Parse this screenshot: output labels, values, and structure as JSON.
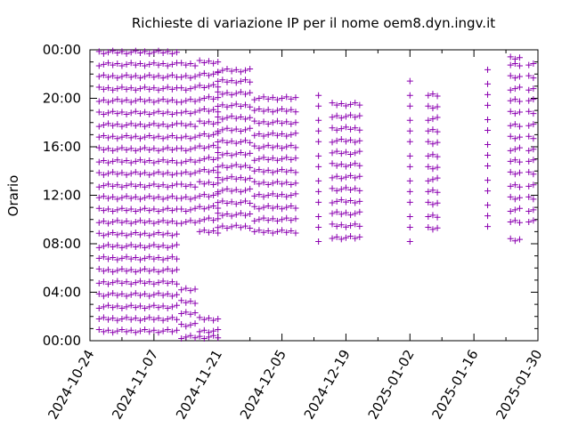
{
  "chart_data": {
    "type": "scatter",
    "title": "Richieste di variazione IP per il nome oem8.dyn.ingv.it",
    "xlabel": "",
    "ylabel": "Orario",
    "x_ticks": [
      "2024-10-24",
      "2024-11-07",
      "2024-11-21",
      "2024-12-05",
      "2024-12-19",
      "2025-01-02",
      "2025-01-16",
      "2025-01-30"
    ],
    "y_ticks": [
      "00:00",
      "04:00",
      "08:00",
      "12:00",
      "16:00",
      "20:00",
      "00:00"
    ],
    "xlim": [
      "2024-10-24",
      "2025-01-30"
    ],
    "ylim": [
      0,
      24
    ],
    "marker": "+",
    "color": "#8b00b0",
    "grid": false,
    "legend": "none",
    "series": [
      {
        "groups": [
          {
            "x_from": "2024-10-26",
            "x_to": "2024-11-12",
            "hours": [
              0.8,
              1.8,
              2.8,
              3.8,
              4.8,
              5.8,
              6.8,
              7.8,
              8.8,
              9.8,
              10.8,
              11.8,
              12.8,
              13.8,
              14.8,
              15.8,
              16.8,
              17.8,
              18.8,
              19.8,
              20.8,
              21.8,
              22.8,
              23.8
            ]
          },
          {
            "x_from": "2024-11-13",
            "x_to": "2024-11-16",
            "hours": [
              0.3,
              1.3,
              2.3,
              3.2,
              4.2,
              9.8,
              10.8,
              11.8,
              12.8,
              13.8,
              14.8,
              15.8,
              16.8,
              17.8,
              18.8,
              19.8,
              20.8,
              21.8,
              22.8
            ]
          },
          {
            "x_from": "2024-11-17",
            "x_to": "2024-11-21",
            "hours": [
              0.3,
              0.8,
              1.8,
              9.0,
              10.0,
              11.0,
              12.0,
              13.0,
              14.0,
              15.0,
              16.0,
              17.0,
              18.0,
              19.0,
              20.0,
              21.0,
              22.0,
              23.0
            ]
          },
          {
            "x_from": "2024-11-21",
            "x_to": "2024-11-28",
            "hours": [
              9.4,
              10.4,
              11.4,
              12.4,
              13.4,
              14.4,
              15.4,
              16.4,
              17.4,
              18.4,
              19.4,
              20.4,
              21.4,
              22.3
            ]
          },
          {
            "x_from": "2024-11-29",
            "x_to": "2024-12-08",
            "hours": [
              9.0,
              10.0,
              11.0,
              12.0,
              13.0,
              14.0,
              15.0,
              16.0,
              17.0,
              18.0,
              19.0,
              20.0
            ]
          },
          {
            "x_from": "2024-12-13",
            "x_to": "2024-12-13",
            "hours": [
              8.3,
              9.3,
              10.3,
              11.3,
              12.3,
              13.3,
              14.3,
              15.3,
              16.3,
              17.3,
              18.3,
              19.3,
              20.3
            ]
          },
          {
            "x_from": "2024-12-16",
            "x_to": "2024-12-22",
            "hours": [
              8.5,
              9.5,
              10.5,
              11.5,
              12.5,
              13.5,
              14.5,
              15.5,
              16.5,
              17.5,
              18.5,
              19.5
            ]
          },
          {
            "x_from": "2025-01-02",
            "x_to": "2025-01-02",
            "hours": [
              8.3,
              9.3,
              10.3,
              11.3,
              12.3,
              13.3,
              14.3,
              15.3,
              16.3,
              17.3,
              18.3,
              19.3,
              20.3,
              21.3
            ]
          },
          {
            "x_from": "2025-01-06",
            "x_to": "2025-01-08",
            "hours": [
              9.3,
              10.3,
              11.3,
              12.3,
              13.3,
              14.3,
              15.3,
              16.3,
              17.3,
              18.3,
              19.3,
              20.3
            ]
          },
          {
            "x_from": "2025-01-19",
            "x_to": "2025-01-19",
            "hours": [
              9.3,
              10.3,
              11.3,
              12.3,
              13.3,
              14.3,
              15.3,
              16.3,
              17.3,
              18.3,
              19.3,
              20.3,
              21.3,
              22.3
            ]
          },
          {
            "x_from": "2025-01-24",
            "x_to": "2025-01-26",
            "hours": [
              8.3,
              9.8,
              10.8,
              11.8,
              12.8,
              13.8,
              14.8,
              15.8,
              16.8,
              17.8,
              18.8,
              19.8,
              20.8,
              21.8,
              22.8,
              23.3
            ]
          },
          {
            "x_from": "2025-01-28",
            "x_to": "2025-01-29",
            "hours": [
              9.8,
              10.8,
              11.8,
              12.8,
              13.8,
              14.8,
              15.8,
              16.8,
              17.8,
              18.8,
              19.8,
              20.8,
              21.8,
              22.8
            ]
          }
        ]
      }
    ]
  }
}
